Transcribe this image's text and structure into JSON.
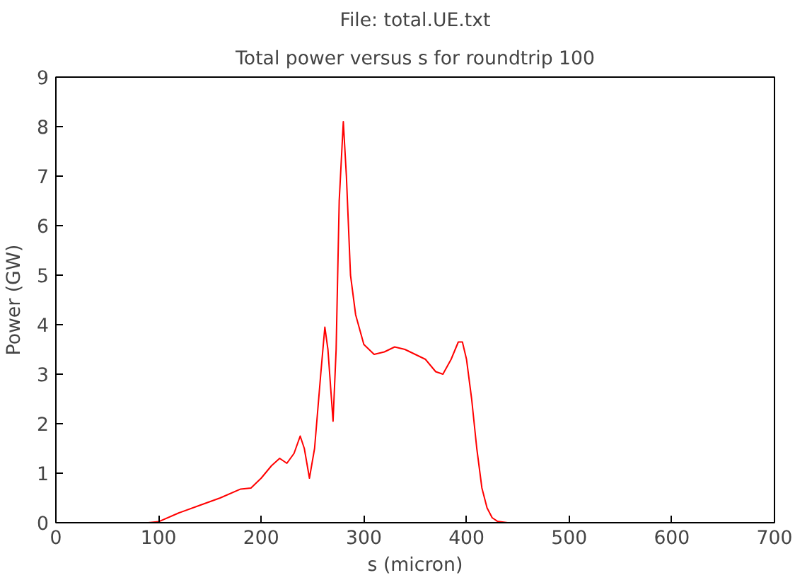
{
  "chart_data": {
    "type": "line",
    "title": "File: total.UE.txt",
    "subtitle": "Total power versus s for roundtrip 100",
    "xlabel": "s (micron)",
    "ylabel": "Power (GW)",
    "xlim": [
      0,
      700
    ],
    "ylim": [
      0,
      9
    ],
    "xticks": [
      0,
      100,
      200,
      300,
      400,
      500,
      600,
      700
    ],
    "yticks": [
      0,
      1,
      2,
      3,
      4,
      5,
      6,
      7,
      8,
      9
    ],
    "grid": false,
    "series": [
      {
        "color": "#ff0000",
        "x": [
          0,
          90,
          100,
          120,
          140,
          160,
          180,
          190,
          200,
          210,
          218,
          225,
          232,
          238,
          242,
          247,
          252,
          258,
          262,
          265,
          270,
          273,
          276,
          280,
          283,
          287,
          292,
          300,
          310,
          320,
          330,
          340,
          350,
          360,
          370,
          377,
          385,
          392,
          396,
          400,
          405,
          410,
          415,
          420,
          425,
          430,
          440,
          600
        ],
        "values": [
          0,
          0,
          0.02,
          0.2,
          0.35,
          0.5,
          0.68,
          0.7,
          0.9,
          1.15,
          1.3,
          1.2,
          1.4,
          1.75,
          1.5,
          0.9,
          1.5,
          3.0,
          3.95,
          3.5,
          2.05,
          3.5,
          6.5,
          8.1,
          7.0,
          5.0,
          4.2,
          3.6,
          3.4,
          3.45,
          3.55,
          3.5,
          3.4,
          3.3,
          3.05,
          3.0,
          3.3,
          3.65,
          3.65,
          3.3,
          2.5,
          1.5,
          0.7,
          0.3,
          0.1,
          0.03,
          0,
          0
        ]
      }
    ]
  }
}
